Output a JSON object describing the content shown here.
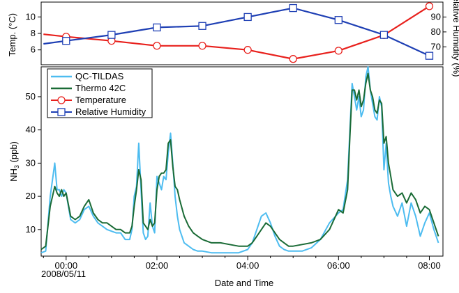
{
  "chart_data": [
    {
      "type": "line",
      "panel": "top",
      "ylabel_left": "Temp. (°C)",
      "ylabel_right": "Relative Humidity (%)",
      "ylim_left": [
        4.2,
        11.8
      ],
      "ylim_right": [
        58,
        100
      ],
      "yticks_left": [
        6,
        8,
        10
      ],
      "yticks_right": [
        70,
        80,
        90
      ],
      "x_hours": [
        -0.5,
        0.0,
        1.0,
        2.0,
        3.0,
        4.0,
        5.0,
        6.0,
        7.0,
        8.0
      ],
      "series": [
        {
          "name": "Temperature",
          "color": "#e8201c",
          "marker": "circle",
          "axis": "left",
          "values": [
            7.9,
            7.6,
            7.1,
            6.5,
            6.5,
            6.0,
            4.9,
            5.9,
            7.8,
            11.3
          ]
        },
        {
          "name": "Relative Humidity",
          "color": "#1e3fb4",
          "marker": "square",
          "axis": "right",
          "values": [
            72,
            74,
            78,
            83,
            84,
            90,
            96,
            88,
            78,
            64
          ]
        }
      ]
    },
    {
      "type": "line",
      "panel": "bottom",
      "title": "",
      "xlabel": "Date and Time",
      "ylabel": "NH3 (ppb)",
      "xlim_hours": [
        -0.55,
        8.3
      ],
      "ylim": [
        2,
        59
      ],
      "yticks": [
        10,
        20,
        30,
        40,
        50
      ],
      "xticks": [
        {
          "h": 0,
          "label": "00:00"
        },
        {
          "h": 2,
          "label": "02:00"
        },
        {
          "h": 4,
          "label": "04:00"
        },
        {
          "h": 6,
          "label": "06:00"
        },
        {
          "h": 8,
          "label": "08:00"
        }
      ],
      "date_label": "2008/05/11",
      "legend": {
        "placement": "top-left",
        "entries": [
          "QC-TILDAS",
          "Thermo 42C",
          "Temperature",
          "Relative Humidity"
        ]
      },
      "series": [
        {
          "name": "QC-TILDAS",
          "color": "#4dbcf0",
          "x": [
            -0.55,
            -0.45,
            -0.35,
            -0.25,
            -0.2,
            -0.15,
            -0.1,
            -0.05,
            0.0,
            0.1,
            0.2,
            0.3,
            0.4,
            0.5,
            0.6,
            0.7,
            0.8,
            0.9,
            1.0,
            1.1,
            1.2,
            1.3,
            1.4,
            1.45,
            1.5,
            1.55,
            1.6,
            1.65,
            1.7,
            1.75,
            1.8,
            1.85,
            1.9,
            1.95,
            2.0,
            2.05,
            2.1,
            2.15,
            2.2,
            2.25,
            2.3,
            2.35,
            2.4,
            2.45,
            2.5,
            2.6,
            2.7,
            2.8,
            2.9,
            3.0,
            3.2,
            3.4,
            3.6,
            3.8,
            4.0,
            4.1,
            4.2,
            4.3,
            4.4,
            4.5,
            4.6,
            4.7,
            4.8,
            4.9,
            5.0,
            5.2,
            5.4,
            5.6,
            5.8,
            6.0,
            6.1,
            6.2,
            6.25,
            6.3,
            6.35,
            6.4,
            6.45,
            6.5,
            6.55,
            6.6,
            6.65,
            6.7,
            6.75,
            6.8,
            6.85,
            6.9,
            6.95,
            7.0,
            7.05,
            7.1,
            7.15,
            7.2,
            7.3,
            7.4,
            7.5,
            7.6,
            7.7,
            7.8,
            7.9,
            8.0,
            8.1,
            8.2
          ],
          "values": [
            3,
            3.5,
            20,
            30,
            22,
            22,
            20,
            22,
            21,
            13,
            12,
            13,
            16,
            17,
            14,
            12,
            11,
            10,
            9.5,
            9,
            9,
            7,
            7,
            10,
            20,
            23,
            36,
            22,
            9,
            7,
            8,
            18,
            11,
            9,
            26,
            24,
            22,
            26,
            25,
            33,
            39,
            30,
            20,
            14,
            10,
            6,
            5,
            4,
            3.5,
            3.5,
            3,
            3,
            3,
            3,
            4,
            6,
            10,
            14,
            15,
            12,
            8,
            5,
            4,
            3.5,
            3.5,
            3.5,
            4.5,
            7,
            12,
            15,
            16,
            25,
            40,
            54,
            50,
            46,
            50,
            44,
            46,
            56,
            59,
            52,
            48,
            44,
            43,
            50,
            47,
            28,
            36,
            24,
            20,
            17,
            14,
            18,
            11,
            18,
            14,
            8,
            12,
            15,
            10,
            6
          ]
        },
        {
          "name": "Thermo 42C",
          "color": "#1a6b36",
          "x": [
            -0.55,
            -0.45,
            -0.35,
            -0.25,
            -0.2,
            -0.15,
            -0.1,
            -0.05,
            0.0,
            0.1,
            0.2,
            0.3,
            0.4,
            0.5,
            0.6,
            0.7,
            0.8,
            0.9,
            1.0,
            1.1,
            1.2,
            1.3,
            1.4,
            1.45,
            1.5,
            1.55,
            1.6,
            1.65,
            1.7,
            1.75,
            1.8,
            1.85,
            1.9,
            1.95,
            2.0,
            2.05,
            2.1,
            2.15,
            2.2,
            2.25,
            2.3,
            2.35,
            2.4,
            2.45,
            2.5,
            2.6,
            2.7,
            2.8,
            2.9,
            3.0,
            3.2,
            3.4,
            3.6,
            3.8,
            4.0,
            4.1,
            4.2,
            4.3,
            4.4,
            4.5,
            4.6,
            4.7,
            4.8,
            4.9,
            5.0,
            5.2,
            5.4,
            5.6,
            5.8,
            6.0,
            6.1,
            6.2,
            6.25,
            6.3,
            6.35,
            6.4,
            6.45,
            6.5,
            6.55,
            6.6,
            6.65,
            6.7,
            6.75,
            6.8,
            6.85,
            6.9,
            6.95,
            7.0,
            7.05,
            7.1,
            7.15,
            7.2,
            7.3,
            7.4,
            7.5,
            7.6,
            7.7,
            7.8,
            7.9,
            8.0,
            8.1,
            8.2
          ],
          "values": [
            4,
            5,
            17,
            23,
            21,
            20,
            22,
            20,
            21,
            14,
            13,
            14,
            17,
            19,
            15,
            13,
            12,
            12,
            11,
            10,
            10,
            9,
            9,
            11,
            17,
            22,
            28,
            25,
            12,
            11,
            10,
            13,
            11,
            12,
            22,
            26,
            27,
            27,
            28,
            36,
            37,
            29,
            23,
            22,
            19,
            14,
            11,
            9,
            8,
            7,
            6,
            6,
            5.5,
            5,
            5,
            6,
            8,
            10,
            12,
            11,
            9,
            7,
            6,
            5,
            5,
            5.5,
            6,
            7,
            10,
            16,
            15,
            22,
            38,
            52,
            52,
            49,
            52,
            47,
            49,
            54,
            57,
            52,
            50,
            46,
            45,
            49,
            48,
            36,
            38,
            30,
            26,
            22,
            20,
            21,
            18,
            21,
            19,
            15,
            17,
            16,
            12,
            8
          ]
        }
      ]
    }
  ]
}
